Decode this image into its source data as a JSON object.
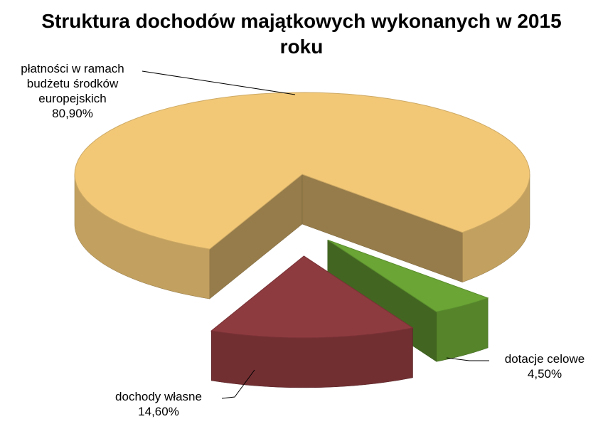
{
  "chart_data": {
    "type": "pie3d",
    "title": "Struktura dochodów majątkowych wykonanych w 2015 roku",
    "categories": [
      "płatności w ramach budżetu środków europejskich",
      "dotacje celowe",
      "dochody własne"
    ],
    "values": [
      80.9,
      4.5,
      14.6
    ],
    "value_labels": [
      "80,90%",
      "4,50%",
      "14,60%"
    ],
    "colors": [
      "#f2c877",
      "#6aa535",
      "#8e3b3f"
    ]
  }
}
